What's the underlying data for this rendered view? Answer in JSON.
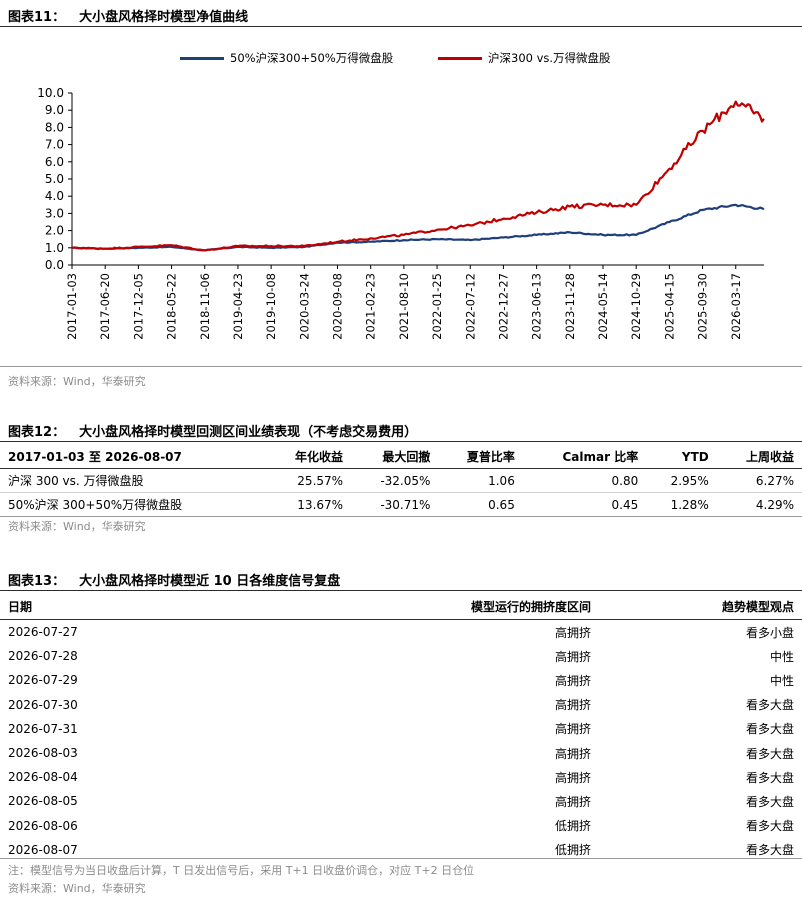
{
  "fig11": {
    "label": "图表11：",
    "title": "大小盘风格择时模型净值曲线",
    "source": "资料来源：Wind，华泰研究"
  },
  "fig12": {
    "label": "图表12：",
    "title": "大小盘风格择时模型回测区间业绩表现（不考虑交易费用）",
    "headers": [
      "2017-01-03 至 2026-08-07",
      "年化收益",
      "最大回撤",
      "夏普比率",
      "Calmar 比率",
      "YTD",
      "上周收益"
    ],
    "rows": [
      [
        "沪深 300 vs. 万得微盘股",
        "25.57%",
        "-32.05%",
        "1.06",
        "0.80",
        "2.95%",
        "6.27%"
      ],
      [
        "50%沪深 300+50%万得微盘股",
        "13.67%",
        "-30.71%",
        "0.65",
        "0.45",
        "1.28%",
        "4.29%"
      ]
    ],
    "source": "资料来源：Wind，华泰研究"
  },
  "fig13": {
    "label": "图表13：",
    "title": "大小盘风格择时模型近 10 日各维度信号复盘",
    "headers": [
      "日期",
      "模型运行的拥挤度区间",
      "趋势模型观点"
    ],
    "rows": [
      [
        "2026-07-27",
        "高拥挤",
        "看多小盘"
      ],
      [
        "2026-07-28",
        "高拥挤",
        "中性"
      ],
      [
        "2026-07-29",
        "高拥挤",
        "中性"
      ],
      [
        "2026-07-30",
        "高拥挤",
        "看多大盘"
      ],
      [
        "2026-07-31",
        "高拥挤",
        "看多大盘"
      ],
      [
        "2026-08-03",
        "高拥挤",
        "看多大盘"
      ],
      [
        "2026-08-04",
        "高拥挤",
        "看多大盘"
      ],
      [
        "2026-08-05",
        "高拥挤",
        "看多大盘"
      ],
      [
        "2026-08-06",
        "低拥挤",
        "看多大盘"
      ],
      [
        "2026-08-07",
        "低拥挤",
        "看多大盘"
      ]
    ],
    "note": "注：模型信号为当日收盘后计算，T 日发出信号后，采用 T+1 日收盘价调仓，对应 T+2 日仓位",
    "source": "资料来源：Wind，华泰研究"
  },
  "chart_data": {
    "type": "line",
    "title": "",
    "xlabel": "",
    "ylabel": "",
    "ylim": [
      0,
      10
    ],
    "yticks": [
      "0.0",
      "1.0",
      "2.0",
      "3.0",
      "4.0",
      "5.0",
      "6.0",
      "7.0",
      "8.0",
      "9.0",
      "10.0"
    ],
    "x": [
      "2017-01-03",
      "2017-06-20",
      "2017-12-05",
      "2018-05-22",
      "2018-11-06",
      "2019-04-23",
      "2019-10-08",
      "2020-03-24",
      "2020-09-08",
      "2021-02-23",
      "2021-08-10",
      "2022-01-25",
      "2022-07-12",
      "2022-12-27",
      "2023-06-13",
      "2023-11-28",
      "2024-05-14",
      "2024-10-29",
      "2025-04-15",
      "2025-09-30",
      "2026-03-17",
      "2026-08-07"
    ],
    "xticks": [
      "2017-01-03",
      "2017-06-20",
      "2017-12-05",
      "2018-05-22",
      "2018-11-06",
      "2019-04-23",
      "2019-10-08",
      "2020-03-24",
      "2020-09-08",
      "2021-02-23",
      "2021-08-10",
      "2022-01-25",
      "2022-07-12",
      "2022-12-27",
      "2023-06-13",
      "2023-11-28",
      "2024-05-14",
      "2024-10-29",
      "2025-04-15",
      "2025-09-30",
      "2026-03-17"
    ],
    "legend_position": "top",
    "grid": false,
    "series": [
      {
        "name": "50%沪深300+50%万得微盘股",
        "color": "#1f3f7a",
        "values": [
          1.0,
          0.95,
          1.0,
          1.05,
          0.85,
          1.05,
          1.0,
          1.05,
          1.3,
          1.35,
          1.45,
          1.5,
          1.45,
          1.6,
          1.75,
          1.9,
          1.75,
          1.75,
          2.5,
          3.2,
          3.5,
          3.25
        ]
      },
      {
        "name": "沪深300 vs.万得微盘股",
        "color": "#c00000",
        "values": [
          1.0,
          0.95,
          1.05,
          1.15,
          0.85,
          1.1,
          1.1,
          1.1,
          1.35,
          1.55,
          1.75,
          2.05,
          2.3,
          2.7,
          3.05,
          3.4,
          3.5,
          3.5,
          5.6,
          7.8,
          9.5,
          8.5
        ]
      }
    ]
  }
}
